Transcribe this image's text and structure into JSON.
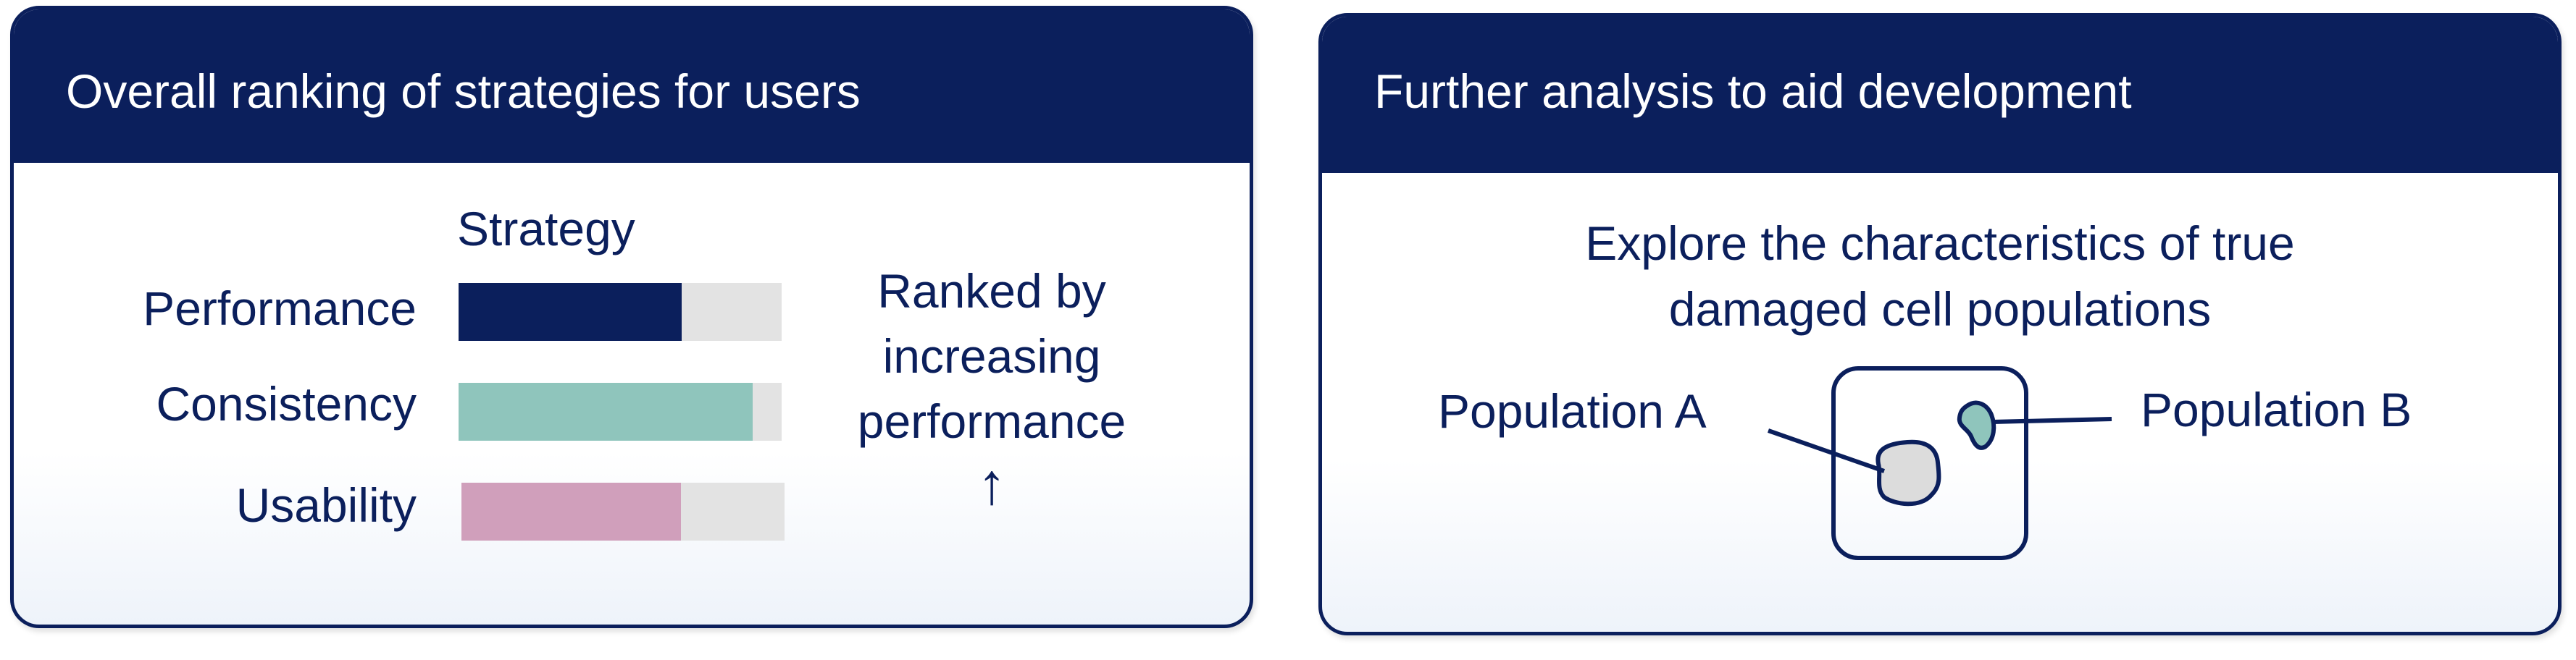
{
  "left_panel": {
    "title": "Overall ranking of strategies for users",
    "column_header": "Strategy",
    "rows": [
      {
        "label": "Performance",
        "fraction": 0.69,
        "color": "#0b1f5c"
      },
      {
        "label": "Consistency",
        "fraction": 0.91,
        "color": "#8fc5bc"
      },
      {
        "label": "Usability",
        "fraction": 0.68,
        "color": "#d09fbb"
      }
    ],
    "note_lines": [
      "Ranked by",
      "increasing",
      "performance"
    ],
    "arrow": "↑"
  },
  "right_panel": {
    "title": "Further analysis to aid development",
    "subtitle_lines": [
      "Explore the characteristics of true",
      "damaged cell populations"
    ],
    "population_a": "Population A",
    "population_b": "Population B"
  },
  "colors": {
    "navy": "#0b1f5c",
    "track": "#e3e3e3",
    "teal": "#8fc5bc",
    "pink": "#d09fbb",
    "cell_a": "#dcdcdc"
  }
}
